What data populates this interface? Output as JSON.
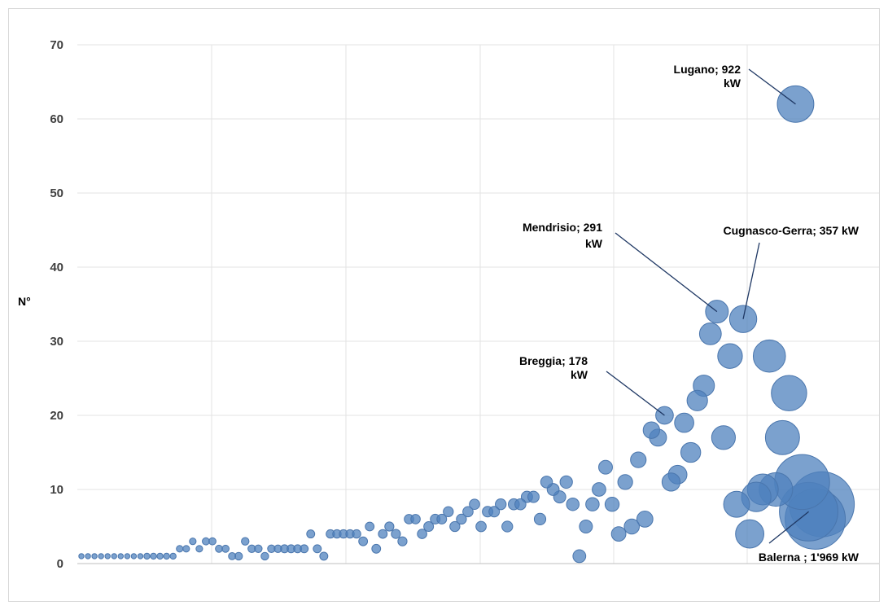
{
  "chart_data": {
    "type": "bubble",
    "title": "",
    "ylabel": "N°",
    "xlabel": "",
    "ylim": [
      0,
      70
    ],
    "yticks": [
      0,
      10,
      20,
      30,
      40,
      50,
      60,
      70
    ],
    "x_tick_labels": "none",
    "grid": "both",
    "color": "#4f81bd",
    "size_unit": "kW",
    "series": [
      {
        "points": [
          {
            "x": 1,
            "y": 1,
            "kw": 1
          },
          {
            "x": 2,
            "y": 1,
            "kw": 1
          },
          {
            "x": 3,
            "y": 1,
            "kw": 1
          },
          {
            "x": 4,
            "y": 1,
            "kw": 1
          },
          {
            "x": 5,
            "y": 1,
            "kw": 1
          },
          {
            "x": 6,
            "y": 1,
            "kw": 1
          },
          {
            "x": 7,
            "y": 1,
            "kw": 1
          },
          {
            "x": 8,
            "y": 1,
            "kw": 1
          },
          {
            "x": 9,
            "y": 1,
            "kw": 1
          },
          {
            "x": 10,
            "y": 1,
            "kw": 1
          },
          {
            "x": 11,
            "y": 1,
            "kw": 2
          },
          {
            "x": 12,
            "y": 1,
            "kw": 2
          },
          {
            "x": 13,
            "y": 1,
            "kw": 2
          },
          {
            "x": 14,
            "y": 1,
            "kw": 2
          },
          {
            "x": 15,
            "y": 1,
            "kw": 2
          },
          {
            "x": 16,
            "y": 2,
            "kw": 3
          },
          {
            "x": 17,
            "y": 2,
            "kw": 3
          },
          {
            "x": 18,
            "y": 3,
            "kw": 3
          },
          {
            "x": 19,
            "y": 2,
            "kw": 3
          },
          {
            "x": 20,
            "y": 3,
            "kw": 4
          },
          {
            "x": 21,
            "y": 3,
            "kw": 4
          },
          {
            "x": 22,
            "y": 2,
            "kw": 4
          },
          {
            "x": 23,
            "y": 2,
            "kw": 4
          },
          {
            "x": 24,
            "y": 1,
            "kw": 4
          },
          {
            "x": 25,
            "y": 1,
            "kw": 5
          },
          {
            "x": 26,
            "y": 3,
            "kw": 5
          },
          {
            "x": 27,
            "y": 2,
            "kw": 5
          },
          {
            "x": 28,
            "y": 2,
            "kw": 5
          },
          {
            "x": 29,
            "y": 1,
            "kw": 5
          },
          {
            "x": 30,
            "y": 2,
            "kw": 5
          },
          {
            "x": 31,
            "y": 2,
            "kw": 5
          },
          {
            "x": 32,
            "y": 2,
            "kw": 6
          },
          {
            "x": 33,
            "y": 2,
            "kw": 6
          },
          {
            "x": 34,
            "y": 2,
            "kw": 6
          },
          {
            "x": 35,
            "y": 2,
            "kw": 6
          },
          {
            "x": 36,
            "y": 4,
            "kw": 6
          },
          {
            "x": 37,
            "y": 2,
            "kw": 6
          },
          {
            "x": 38,
            "y": 1,
            "kw": 6
          },
          {
            "x": 39,
            "y": 4,
            "kw": 7
          },
          {
            "x": 40,
            "y": 4,
            "kw": 7
          },
          {
            "x": 41,
            "y": 4,
            "kw": 7
          },
          {
            "x": 42,
            "y": 4,
            "kw": 7
          },
          {
            "x": 43,
            "y": 4,
            "kw": 7
          },
          {
            "x": 44,
            "y": 3,
            "kw": 8
          },
          {
            "x": 45,
            "y": 5,
            "kw": 8
          },
          {
            "x": 46,
            "y": 2,
            "kw": 8
          },
          {
            "x": 47,
            "y": 4,
            "kw": 8
          },
          {
            "x": 48,
            "y": 5,
            "kw": 9
          },
          {
            "x": 49,
            "y": 4,
            "kw": 9
          },
          {
            "x": 50,
            "y": 3,
            "kw": 9
          },
          {
            "x": 51,
            "y": 6,
            "kw": 10
          },
          {
            "x": 52,
            "y": 6,
            "kw": 10
          },
          {
            "x": 53,
            "y": 4,
            "kw": 10
          },
          {
            "x": 54,
            "y": 5,
            "kw": 11
          },
          {
            "x": 55,
            "y": 6,
            "kw": 11
          },
          {
            "x": 56,
            "y": 6,
            "kw": 11
          },
          {
            "x": 57,
            "y": 7,
            "kw": 12
          },
          {
            "x": 58,
            "y": 5,
            "kw": 12
          },
          {
            "x": 59,
            "y": 6,
            "kw": 12
          },
          {
            "x": 60,
            "y": 7,
            "kw": 13
          },
          {
            "x": 61,
            "y": 8,
            "kw": 13
          },
          {
            "x": 62,
            "y": 5,
            "kw": 13
          },
          {
            "x": 63,
            "y": 7,
            "kw": 14
          },
          {
            "x": 64,
            "y": 7,
            "kw": 14
          },
          {
            "x": 65,
            "y": 8,
            "kw": 15
          },
          {
            "x": 66,
            "y": 5,
            "kw": 15
          },
          {
            "x": 67,
            "y": 8,
            "kw": 16
          },
          {
            "x": 68,
            "y": 8,
            "kw": 16
          },
          {
            "x": 69,
            "y": 9,
            "kw": 17
          },
          {
            "x": 70,
            "y": 9,
            "kw": 17
          },
          {
            "x": 71,
            "y": 6,
            "kw": 18
          },
          {
            "x": 72,
            "y": 11,
            "kw": 19
          },
          {
            "x": 73,
            "y": 10,
            "kw": 20
          },
          {
            "x": 74,
            "y": 9,
            "kw": 21
          },
          {
            "x": 75,
            "y": 11,
            "kw": 22
          },
          {
            "x": 76,
            "y": 8,
            "kw": 23
          },
          {
            "x": 77,
            "y": 1,
            "kw": 24
          },
          {
            "x": 78,
            "y": 5,
            "kw": 25
          },
          {
            "x": 79,
            "y": 8,
            "kw": 27
          },
          {
            "x": 80,
            "y": 10,
            "kw": 28
          },
          {
            "x": 81,
            "y": 13,
            "kw": 29
          },
          {
            "x": 82,
            "y": 8,
            "kw": 31
          },
          {
            "x": 83,
            "y": 4,
            "kw": 33
          },
          {
            "x": 84,
            "y": 11,
            "kw": 35
          },
          {
            "x": 85,
            "y": 5,
            "kw": 37
          },
          {
            "x": 86,
            "y": 14,
            "kw": 40
          },
          {
            "x": 87,
            "y": 6,
            "kw": 43
          },
          {
            "x": 88,
            "y": 18,
            "kw": 46
          },
          {
            "x": 89,
            "y": 17,
            "kw": 50
          },
          {
            "x": 90,
            "y": 20,
            "kw": 54
          },
          {
            "x": 91,
            "y": 11,
            "kw": 58
          },
          {
            "x": 92,
            "y": 12,
            "kw": 62
          },
          {
            "x": 93,
            "y": 19,
            "kw": 67
          },
          {
            "x": 94,
            "y": 15,
            "kw": 72
          },
          {
            "x": 95,
            "y": 22,
            "kw": 78
          },
          {
            "x": 96,
            "y": 24,
            "kw": 84
          },
          {
            "x": 97,
            "y": 31,
            "kw": 90
          },
          {
            "x": 98,
            "y": 34,
            "kw": 100
          },
          {
            "x": 99,
            "y": 17,
            "kw": 110
          },
          {
            "x": 100,
            "y": 28,
            "kw": 120
          },
          {
            "x": 101,
            "y": 8,
            "kw": 135
          },
          {
            "x": 102,
            "y": 33,
            "kw": 150
          },
          {
            "x": 103,
            "y": 4,
            "kw": 165
          },
          {
            "x": 104,
            "y": 9,
            "kw": 180
          },
          {
            "x": 105,
            "y": 10,
            "kw": 200
          },
          {
            "x": 106,
            "y": 28,
            "kw": 220
          },
          {
            "x": 107,
            "y": 10,
            "kw": 240
          },
          {
            "x": 108,
            "y": 17,
            "kw": 250
          },
          {
            "x": 109,
            "y": 23,
            "kw": 270
          },
          {
            "x": 110,
            "y": 62,
            "kw": 290
          },
          {
            "x": 111,
            "y": 11,
            "kw": 700
          },
          {
            "x": 112,
            "y": 7,
            "kw": 800
          },
          {
            "x": 113,
            "y": 6,
            "kw": 850
          },
          {
            "x": 114,
            "y": 8,
            "kw": 1000
          }
        ]
      }
    ],
    "annotations": [
      {
        "name": "lugano",
        "lines": [
          "Lugano;  922",
          "kW"
        ],
        "point_index": 109
      },
      {
        "name": "mendrisio",
        "lines": [
          "Mendrisio;  291",
          "kW"
        ],
        "point_index": 97
      },
      {
        "name": "cugnasco",
        "lines": [
          "Cugnasco-Gerra;  357 kW"
        ],
        "point_index": 101
      },
      {
        "name": "breggia",
        "lines": [
          "Breggia;  178",
          "kW"
        ],
        "point_index": 89
      },
      {
        "name": "balerna",
        "lines": [
          "Balerna  ;  1'969 kW"
        ],
        "point_index": 111
      }
    ]
  }
}
